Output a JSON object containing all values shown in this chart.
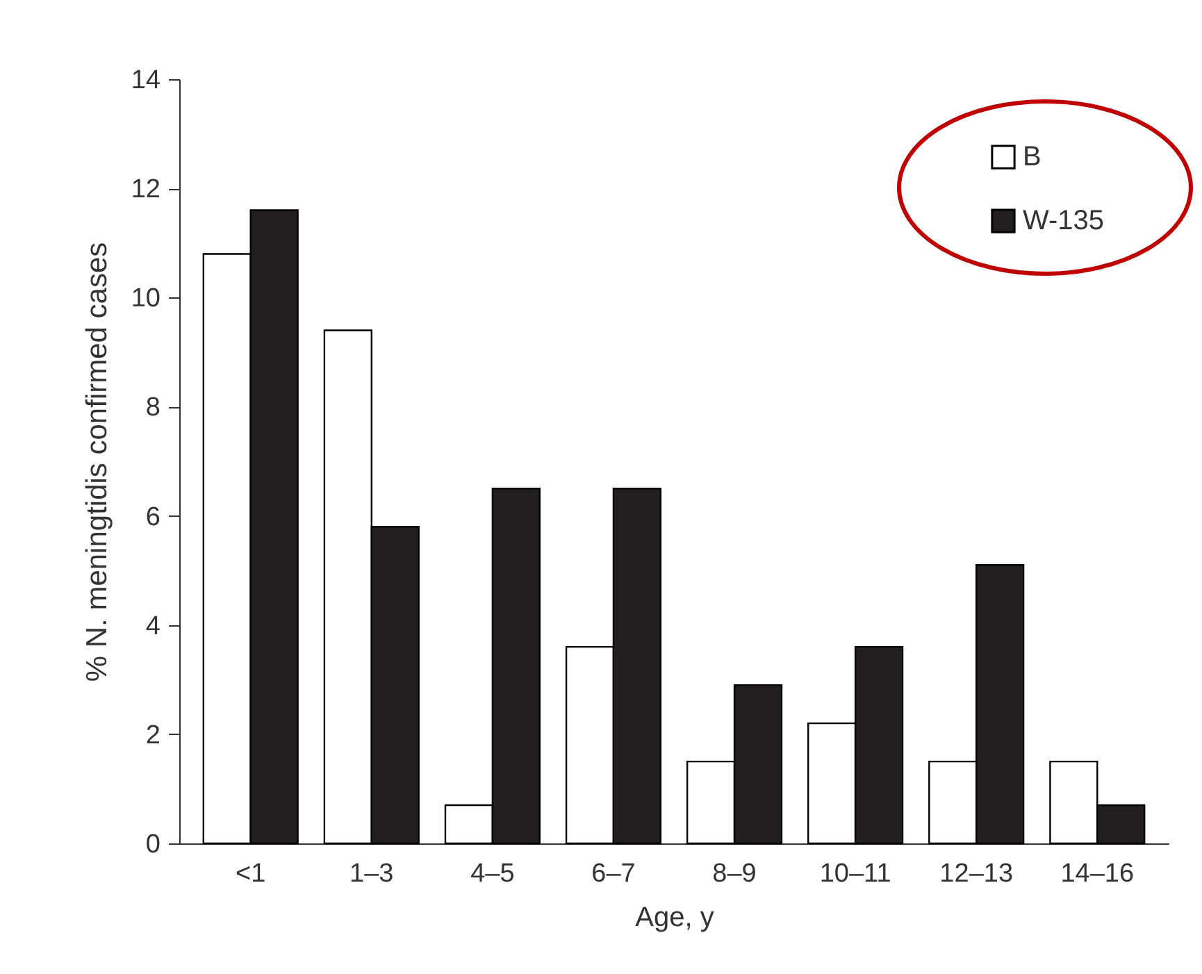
{
  "chart_data": {
    "type": "bar",
    "xlabel": "Age, y",
    "ylabel": "% N. meningtidis confirmed cases",
    "categories": [
      "<1",
      "1–3",
      "4–5",
      "6–7",
      "8–9",
      "10–11",
      "12–13",
      "14–16"
    ],
    "series": [
      {
        "name": "B",
        "color": "#ffffff",
        "values": [
          10.8,
          9.4,
          0.7,
          3.6,
          1.5,
          2.2,
          1.5,
          1.5
        ]
      },
      {
        "name": "W-135",
        "color": "#231f20",
        "values": [
          11.6,
          5.8,
          6.5,
          6.5,
          2.9,
          3.6,
          5.1,
          0.7
        ]
      }
    ],
    "ylim": [
      0,
      14
    ],
    "yticks": [
      0,
      2,
      4,
      6,
      8,
      10,
      12,
      14
    ],
    "grid": false,
    "legend": "top right"
  }
}
